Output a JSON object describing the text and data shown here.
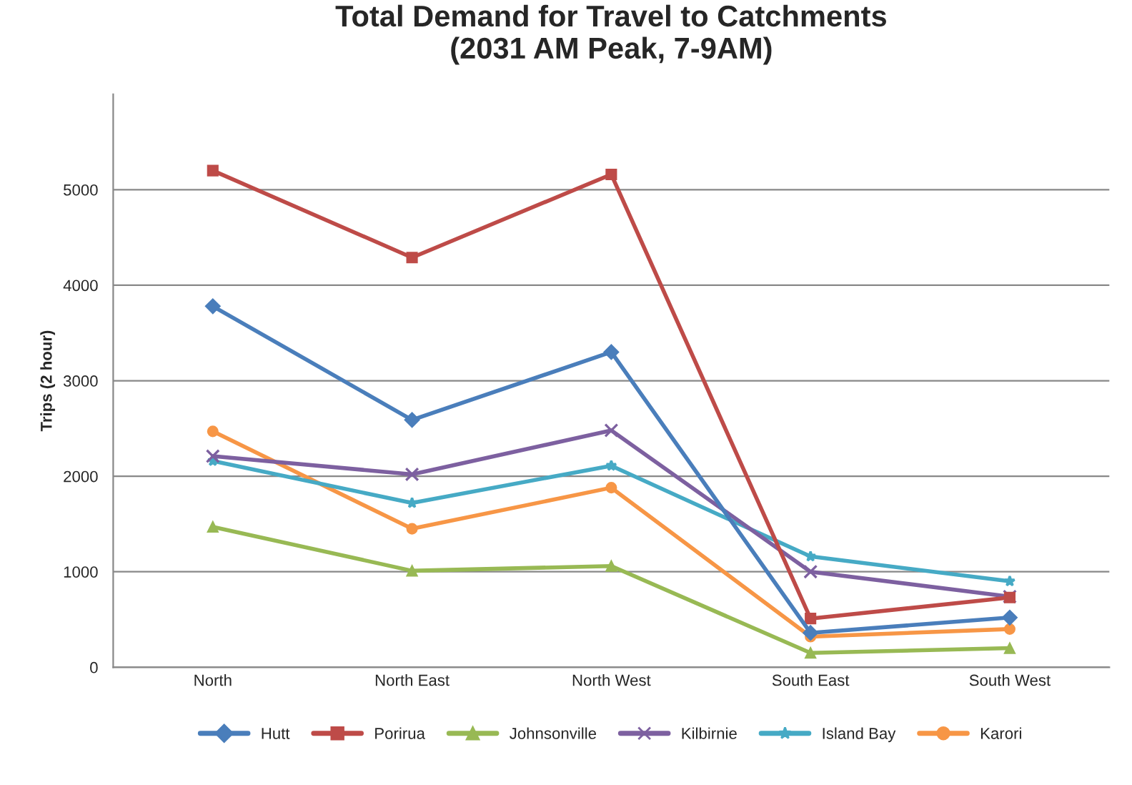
{
  "chart_data": {
    "type": "line",
    "title": "Total Demand for Travel to Catchments\n(2031 AM Peak, 7-9AM)",
    "ylabel": "Trips (2 hour)",
    "categories": [
      "North",
      "North East",
      "North West",
      "South East",
      "South West"
    ],
    "series": [
      {
        "name": "Hutt",
        "color": "#4a7ebb",
        "marker": "diamond",
        "values": [
          3780,
          2590,
          3300,
          360,
          520
        ]
      },
      {
        "name": "Porirua",
        "color": "#be4b48",
        "marker": "square",
        "values": [
          5200,
          4290,
          5160,
          510,
          730
        ]
      },
      {
        "name": "Johnsonville",
        "color": "#98b954",
        "marker": "triangle",
        "values": [
          1470,
          1010,
          1060,
          150,
          200
        ]
      },
      {
        "name": "Kilbirnie",
        "color": "#7d60a0",
        "marker": "cross",
        "values": [
          2210,
          2020,
          2480,
          1000,
          740
        ]
      },
      {
        "name": "Island Bay",
        "color": "#46aac5",
        "marker": "star",
        "values": [
          2160,
          1720,
          2110,
          1160,
          900
        ]
      },
      {
        "name": "Karori",
        "color": "#f79646",
        "marker": "circle",
        "values": [
          2470,
          1450,
          1880,
          320,
          400
        ]
      }
    ],
    "ylim": [
      0,
      6000
    ],
    "yticks": [
      0,
      1000,
      2000,
      3000,
      4000,
      5000
    ],
    "grid": "y",
    "legend": "bottom",
    "line_style": "solid"
  }
}
